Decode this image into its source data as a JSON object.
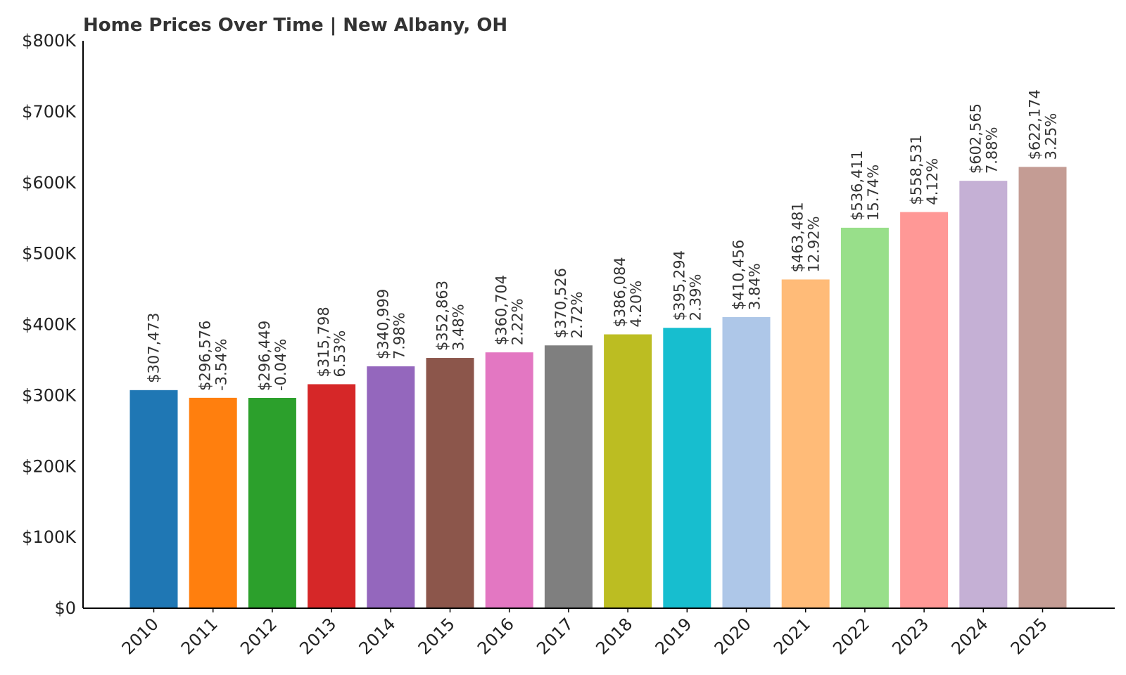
{
  "chart_data": {
    "type": "bar",
    "title": "Home Prices Over Time | New Albany, OH",
    "xlabel": "",
    "ylabel": "",
    "ylim": [
      0,
      800000
    ],
    "y_ticks": [
      {
        "value": 0,
        "label": "$0"
      },
      {
        "value": 100000,
        "label": "$100K"
      },
      {
        "value": 200000,
        "label": "$200K"
      },
      {
        "value": 300000,
        "label": "$300K"
      },
      {
        "value": 400000,
        "label": "$400K"
      },
      {
        "value": 500000,
        "label": "$500K"
      },
      {
        "value": 600000,
        "label": "$600K"
      },
      {
        "value": 700000,
        "label": "$700K"
      },
      {
        "value": 800000,
        "label": "$800K"
      }
    ],
    "grid": false,
    "legend": "none",
    "categories": [
      "2010",
      "2011",
      "2012",
      "2013",
      "2014",
      "2015",
      "2016",
      "2017",
      "2018",
      "2019",
      "2020",
      "2021",
      "2022",
      "2023",
      "2024",
      "2025"
    ],
    "values": [
      307473,
      296576,
      296449,
      315798,
      340999,
      352863,
      360704,
      370526,
      386084,
      395294,
      410456,
      463481,
      536411,
      558531,
      602565,
      622174
    ],
    "value_labels": [
      "$307,473",
      "$296,576",
      "$296,449",
      "$315,798",
      "$340,999",
      "$352,863",
      "$360,704",
      "$370,526",
      "$386,084",
      "$395,294",
      "$410,456",
      "$463,481",
      "$536,411",
      "$558,531",
      "$602,565",
      "$622,174"
    ],
    "change_labels": [
      "",
      "-3.54%",
      "-0.04%",
      "6.53%",
      "7.98%",
      "3.48%",
      "2.22%",
      "2.72%",
      "4.20%",
      "2.39%",
      "3.84%",
      "12.92%",
      "15.74%",
      "4.12%",
      "7.88%",
      "3.25%"
    ],
    "colors": [
      "#1f77b4",
      "#ff7f0e",
      "#2ca02c",
      "#d62728",
      "#9467bd",
      "#8c564b",
      "#e377c2",
      "#7f7f7f",
      "#bcbd22",
      "#17becf",
      "#aec7e8",
      "#ffbb78",
      "#98df8a",
      "#ff9896",
      "#c5b0d5",
      "#c49c94"
    ]
  }
}
